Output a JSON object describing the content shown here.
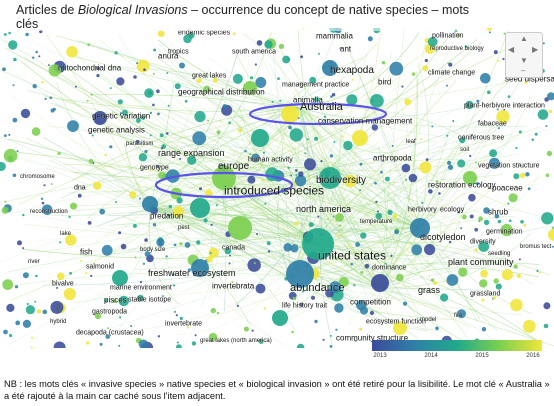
{
  "title": {
    "prefix": "Articles de ",
    "journal": "Biological Invasions",
    "suffix": " – occurrence du concept de native species – mots clés"
  },
  "legend": {
    "years": [
      "2013",
      "2014",
      "2015",
      "2016"
    ],
    "colors": [
      "#3b4c9a",
      "#2f7fa8",
      "#22a98b",
      "#7ccf4f",
      "#f0e63a"
    ]
  },
  "note": "NB : les mots clés « invasive species » native species et « biological invasion » ont été retiré pour la lisibilité. Le mot clé « Australia » a été rajouté à la main car caché sous l'item adjacent.",
  "zoom_controls": {
    "up": "▲",
    "left": "◀",
    "right": "▶",
    "down": "▼",
    "minus": "–"
  },
  "network": {
    "labels": [
      {
        "text": "mammalia",
        "s": 8
      },
      {
        "text": "ant",
        "s": 8
      },
      {
        "text": "pollination",
        "s": 7
      },
      {
        "text": "endemic species",
        "s": 7
      },
      {
        "text": "south america",
        "s": 7
      },
      {
        "text": "tropics",
        "s": 7
      },
      {
        "text": "reproductive biology",
        "s": 6
      },
      {
        "text": "mitochondrial dna",
        "s": 8
      },
      {
        "text": "anura",
        "s": 8
      },
      {
        "text": "hexapoda",
        "s": 10
      },
      {
        "text": "seed dispersal",
        "s": 8
      },
      {
        "text": "geographical distribution",
        "s": 8
      },
      {
        "text": "bird",
        "s": 8
      },
      {
        "text": "climate change",
        "s": 7
      },
      {
        "text": "great lakes",
        "s": 7
      },
      {
        "text": "management practice",
        "s": 7
      },
      {
        "text": "animalia",
        "s": 8
      },
      {
        "text": "Australia",
        "s": 11
      },
      {
        "text": "plant-herbivore interaction",
        "s": 7
      },
      {
        "text": "genetic variation",
        "s": 8
      },
      {
        "text": "genetic analysis",
        "s": 8
      },
      {
        "text": "conservation management",
        "s": 8
      },
      {
        "text": "fabaceae",
        "s": 7
      },
      {
        "text": "coniferous tree",
        "s": 7
      },
      {
        "text": "range expansion",
        "s": 9
      },
      {
        "text": "arthropoda",
        "s": 8
      },
      {
        "text": "human activity",
        "s": 7
      },
      {
        "text": "vegetation structure",
        "s": 7
      },
      {
        "text": "genotype",
        "s": 7
      },
      {
        "text": "europe",
        "s": 10
      },
      {
        "text": "restoration ecology",
        "s": 8
      },
      {
        "text": "introduced species",
        "s": 12
      },
      {
        "text": "biodiversity",
        "s": 10
      },
      {
        "text": "poaceae",
        "s": 8
      },
      {
        "text": "predation",
        "s": 8
      },
      {
        "text": "north america",
        "s": 9
      },
      {
        "text": "shrub",
        "s": 8
      },
      {
        "text": "dicotyledon",
        "s": 9
      },
      {
        "text": "germination",
        "s": 7
      },
      {
        "text": "fish",
        "s": 8
      },
      {
        "text": "salmonid",
        "s": 7
      },
      {
        "text": "canada",
        "s": 7
      },
      {
        "text": "united states",
        "s": 12
      },
      {
        "text": "plant community",
        "s": 9
      },
      {
        "text": "freshwater ecosystem",
        "s": 9
      },
      {
        "text": "abundance",
        "s": 11
      },
      {
        "text": "grass",
        "s": 9
      },
      {
        "text": "bivalve",
        "s": 7
      },
      {
        "text": "marine environment",
        "s": 7
      },
      {
        "text": "invertebrata",
        "s": 8
      },
      {
        "text": "dominance",
        "s": 7
      },
      {
        "text": "competition",
        "s": 8
      },
      {
        "text": "grassland",
        "s": 7
      },
      {
        "text": "pisces",
        "s": 8
      },
      {
        "text": "stable isotope",
        "s": 7
      },
      {
        "text": "life history trait",
        "s": 7
      },
      {
        "text": "gastropoda",
        "s": 7
      },
      {
        "text": "invertebrate",
        "s": 7
      },
      {
        "text": "ecosystem function",
        "s": 7
      },
      {
        "text": "decapoda (crustacea)",
        "s": 7
      },
      {
        "text": "great lakes (north america)",
        "s": 6
      },
      {
        "text": "crustacean",
        "s": 7
      },
      {
        "text": "crayfish",
        "s": 7
      },
      {
        "text": "community structure",
        "s": 8
      },
      {
        "text": "food web",
        "s": 7
      },
      {
        "text": "ecophysiology",
        "s": 6
      },
      {
        "text": "growth rate",
        "s": 8
      },
      {
        "text": "model",
        "s": 6
      },
      {
        "text": "diversity",
        "s": 7
      },
      {
        "text": "ecology",
        "s": 7
      },
      {
        "text": "bromus tect",
        "s": 6
      },
      {
        "text": "herbivory",
        "s": 7
      },
      {
        "text": "seedling",
        "s": 6
      },
      {
        "text": "chromosome",
        "s": 6
      },
      {
        "text": "reconstruction",
        "s": 6
      },
      {
        "text": "dna",
        "s": 7
      },
      {
        "text": "leaf",
        "s": 6
      },
      {
        "text": "soil",
        "s": 6
      },
      {
        "text": "parasitism",
        "s": 6
      },
      {
        "text": "pest",
        "s": 6
      },
      {
        "text": "fire",
        "s": 6
      },
      {
        "text": "body size",
        "s": 6
      },
      {
        "text": "temperature",
        "s": 6
      },
      {
        "text": "hybrid",
        "s": 6
      },
      {
        "text": "lake",
        "s": 6
      },
      {
        "text": "river",
        "s": 6
      }
    ]
  }
}
